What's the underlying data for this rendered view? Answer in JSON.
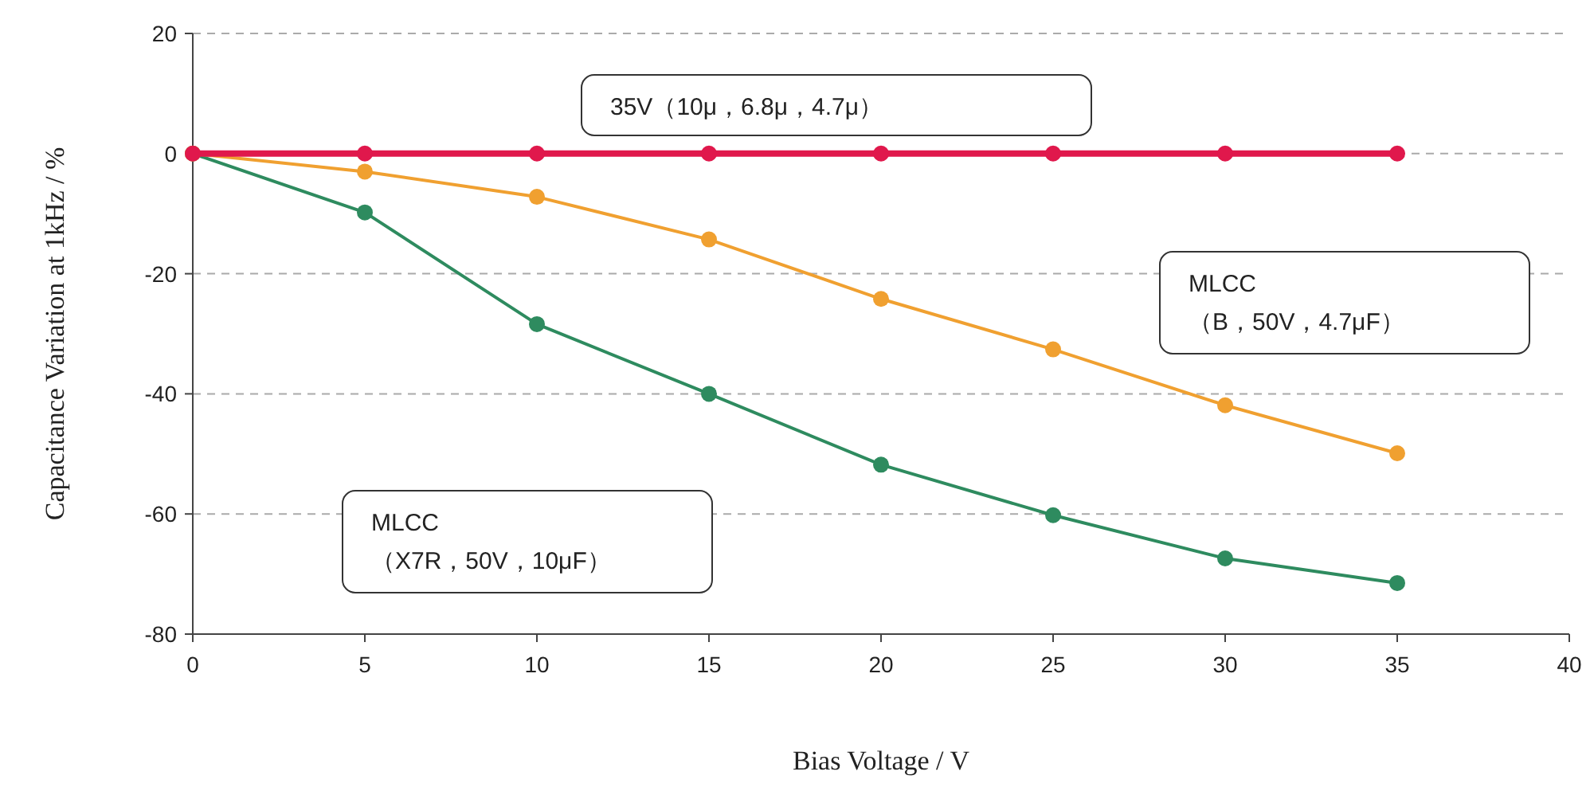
{
  "chart_data": {
    "type": "line",
    "xlabel": "Bias Voltage / V",
    "ylabel": "Capacitance Variation at 1kHz / %",
    "x": [
      0,
      5,
      10,
      15,
      20,
      25,
      30,
      35
    ],
    "series": [
      {
        "color": "#2e8b5f",
        "values": [
          0,
          -9.8,
          -28.4,
          -40,
          -51.8,
          -60.2,
          -67.4,
          -71.5
        ]
      },
      {
        "color": "#f0a030",
        "values": [
          0,
          -3,
          -7.2,
          -14.3,
          -24.2,
          -32.6,
          -41.9,
          -49.9
        ]
      },
      {
        "color": "#e0184c",
        "values": [
          0,
          0,
          0,
          0,
          0,
          0,
          0,
          0
        ]
      }
    ],
    "xlim": [
      0,
      40
    ],
    "xticks": [
      0,
      5,
      10,
      15,
      20,
      25,
      30,
      35,
      40
    ],
    "ylim": [
      -80,
      20
    ],
    "yticks": [
      -80,
      -60,
      -40,
      -20,
      0,
      20
    ],
    "grid": "y",
    "marker": "circle",
    "line_style": "solid",
    "annotations": [
      "35V（10μ，6.8μ，4.7μ）",
      "MLCC\n（B，50V，4.7μF）",
      "MLCC\n（X7R，50V，10μF）"
    ]
  }
}
